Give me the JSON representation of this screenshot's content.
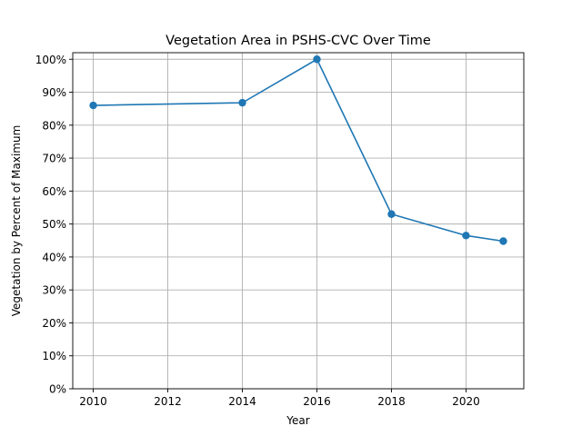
{
  "chart_data": {
    "type": "line",
    "title": "Vegetation Area in PSHS-CVC Over Time",
    "xlabel": "Year",
    "ylabel": "Vegetation by Percent of Maximum",
    "x": [
      2010,
      2014,
      2016,
      2018,
      2020,
      2021
    ],
    "series": [
      {
        "values": [
          86,
          86.8,
          100,
          53,
          46.5,
          44.8
        ]
      }
    ],
    "xlim": [
      2009.45,
      2021.55
    ],
    "ylim": [
      0,
      102
    ],
    "x_ticks": [
      2010,
      2012,
      2014,
      2016,
      2018,
      2020
    ],
    "x_tick_labels": [
      "2010",
      "2012",
      "2014",
      "2016",
      "2018",
      "2020"
    ],
    "y_ticks": [
      0,
      10,
      20,
      30,
      40,
      50,
      60,
      70,
      80,
      90,
      100
    ],
    "y_tick_labels": [
      "0%",
      "10%",
      "20%",
      "30%",
      "40%",
      "50%",
      "60%",
      "70%",
      "80%",
      "90%",
      "100%"
    ],
    "grid": true,
    "markers": "circle",
    "color": "#1f77b4"
  }
}
